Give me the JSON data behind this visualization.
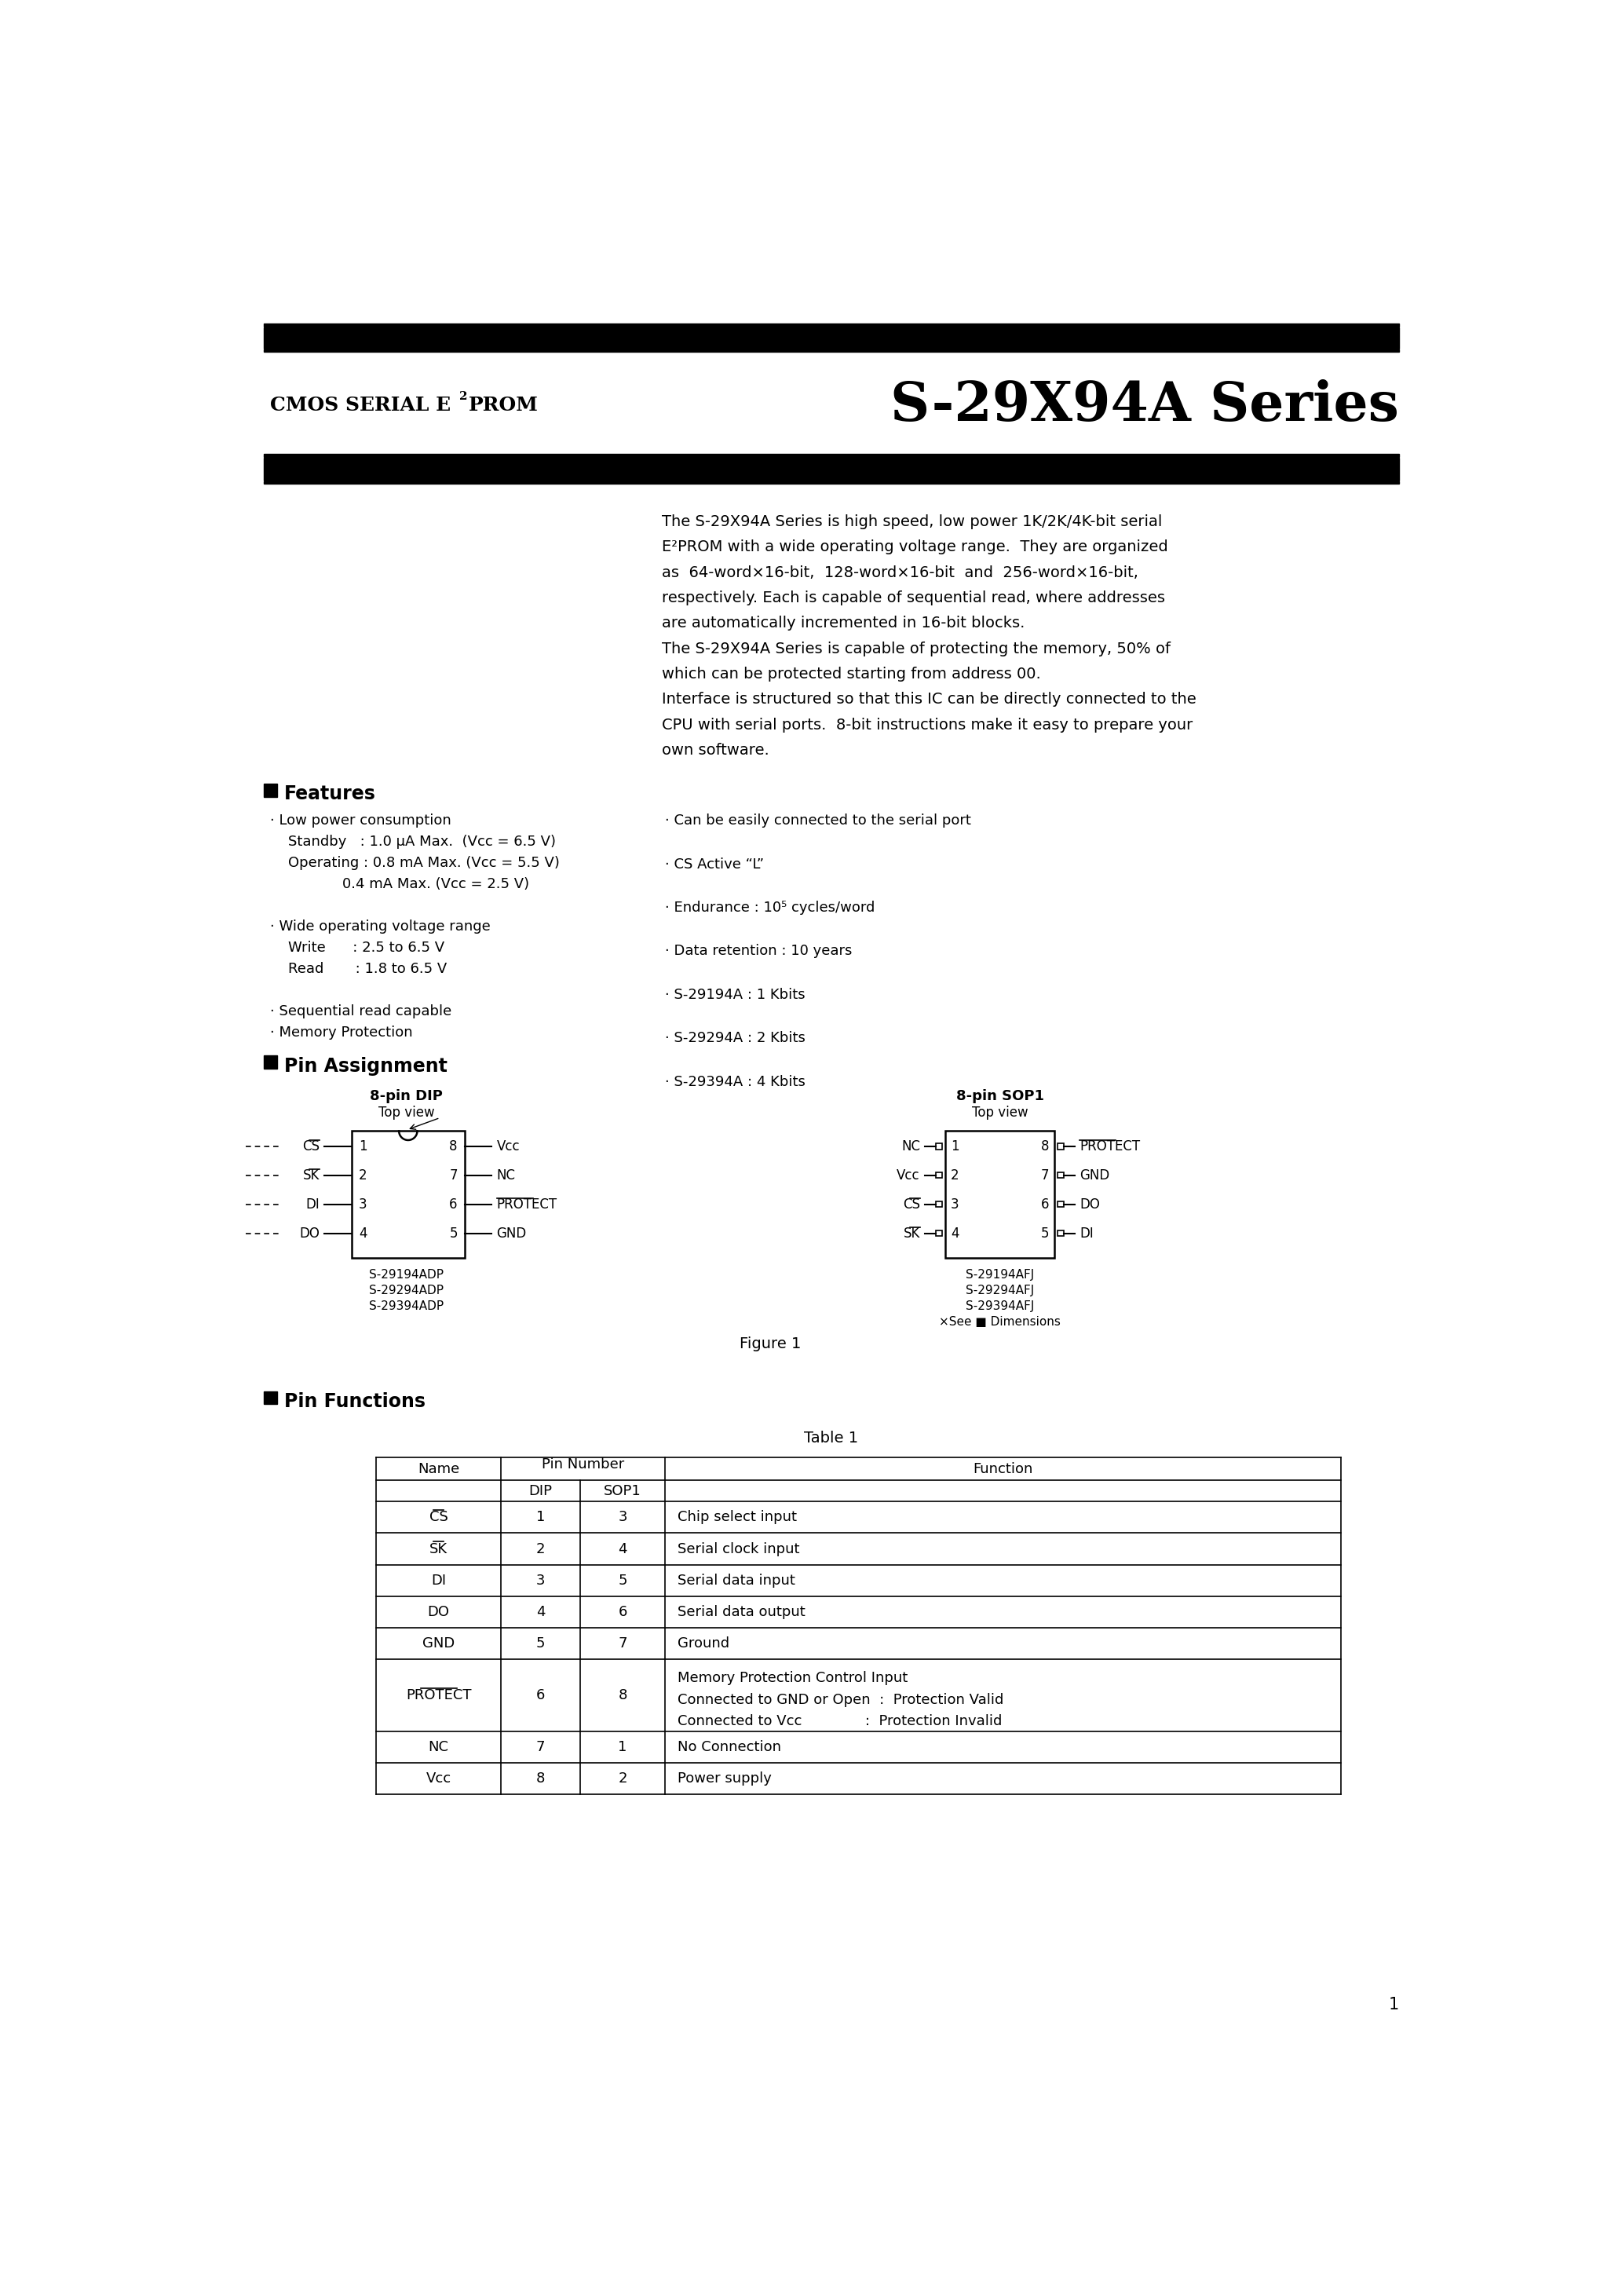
{
  "page_bg": "#ffffff",
  "header_left_part1": "CMOS SERIAL E",
  "header_left_sup": "2",
  "header_left_part2": "PROM",
  "header_right": "S-29X94A Series",
  "intro_text": [
    "The S-29X94A Series is high speed, low power 1K/2K/4K-bit serial",
    "E²PROM with a wide operating voltage range.  They are organized",
    "as  64-word×16-bit,  128-word×16-bit  and  256-word×16-bit,",
    "respectively. Each is capable of sequential read, where addresses",
    "are automatically incremented in 16-bit blocks.",
    "The S-29X94A Series is capable of protecting the memory, 50% of",
    "which can be protected starting from address 00.",
    "Interface is structured so that this IC can be directly connected to the",
    "CPU with serial ports.  8-bit instructions make it easy to prepare your",
    "own software."
  ],
  "features_left": [
    "· Low power consumption",
    "    Standby   : 1.0 μA Max.  (Vᴄᴄ = 6.5 V)",
    "    Operating : 0.8 mA Max. (Vᴄᴄ = 5.5 V)",
    "                0.4 mA Max. (Vᴄᴄ = 2.5 V)",
    "",
    "· Wide operating voltage range",
    "    Write      : 2.5 to 6.5 V",
    "    Read       : 1.8 to 6.5 V",
    "",
    "· Sequential read capable",
    "· Memory Protection"
  ],
  "features_right": [
    "· Can be easily connected to the serial port",
    "",
    "· CS Active “L”",
    "",
    "· Endurance : 10⁵ cycles/word",
    "",
    "· Data retention : 10 years",
    "",
    "· S-29194A : 1 Kbits",
    "",
    "· S-29294A : 2 Kbits",
    "",
    "· S-29394A : 4 Kbits"
  ],
  "dip_left_names": [
    "CS",
    "SK",
    "DI",
    "DO"
  ],
  "dip_left_nums": [
    "1",
    "2",
    "3",
    "4"
  ],
  "dip_right_names": [
    "Vcc",
    "NC",
    "PROTECT",
    "GND"
  ],
  "dip_right_nums": [
    "8",
    "7",
    "6",
    "5"
  ],
  "dip_overline": [
    true,
    true,
    false,
    false
  ],
  "dip_right_overline": [
    false,
    false,
    true,
    false
  ],
  "dip_models": [
    "S-29194ADP",
    "S-29294ADP",
    "S-29394ADP"
  ],
  "sop_left_names": [
    "NC",
    "Vcc",
    "CS",
    "SK"
  ],
  "sop_left_nums": [
    "1",
    "2",
    "3",
    "4"
  ],
  "sop_right_names": [
    "PROTECT",
    "GND",
    "DO",
    "DI"
  ],
  "sop_right_nums": [
    "8",
    "7",
    "6",
    "5"
  ],
  "sop_left_overline": [
    false,
    false,
    true,
    true
  ],
  "sop_right_overline": [
    true,
    false,
    false,
    false
  ],
  "sop_models": [
    "S-29194AFJ",
    "S-29294AFJ",
    "S-29394AFJ"
  ],
  "sop_note": "×See ■ Dimensions",
  "table_rows": [
    [
      "CS",
      "1",
      "3",
      "Chip select input",
      true,
      false
    ],
    [
      "SK",
      "2",
      "4",
      "Serial clock input",
      true,
      false
    ],
    [
      "DI",
      "3",
      "5",
      "Serial data input",
      false,
      false
    ],
    [
      "DO",
      "4",
      "6",
      "Serial data output",
      false,
      false
    ],
    [
      "GND",
      "5",
      "7",
      "Ground",
      false,
      false
    ],
    [
      "PROTECT",
      "6",
      "8",
      "Memory Protection Control Input\nConnected to GND or Open  :  Protection Valid\nConnected to Vcc              :  Protection Invalid",
      true,
      false
    ],
    [
      "NC",
      "7",
      "1",
      "No Connection",
      false,
      false
    ],
    [
      "Vcc",
      "8",
      "2",
      "Power supply",
      false,
      true
    ]
  ],
  "page_number": "1"
}
